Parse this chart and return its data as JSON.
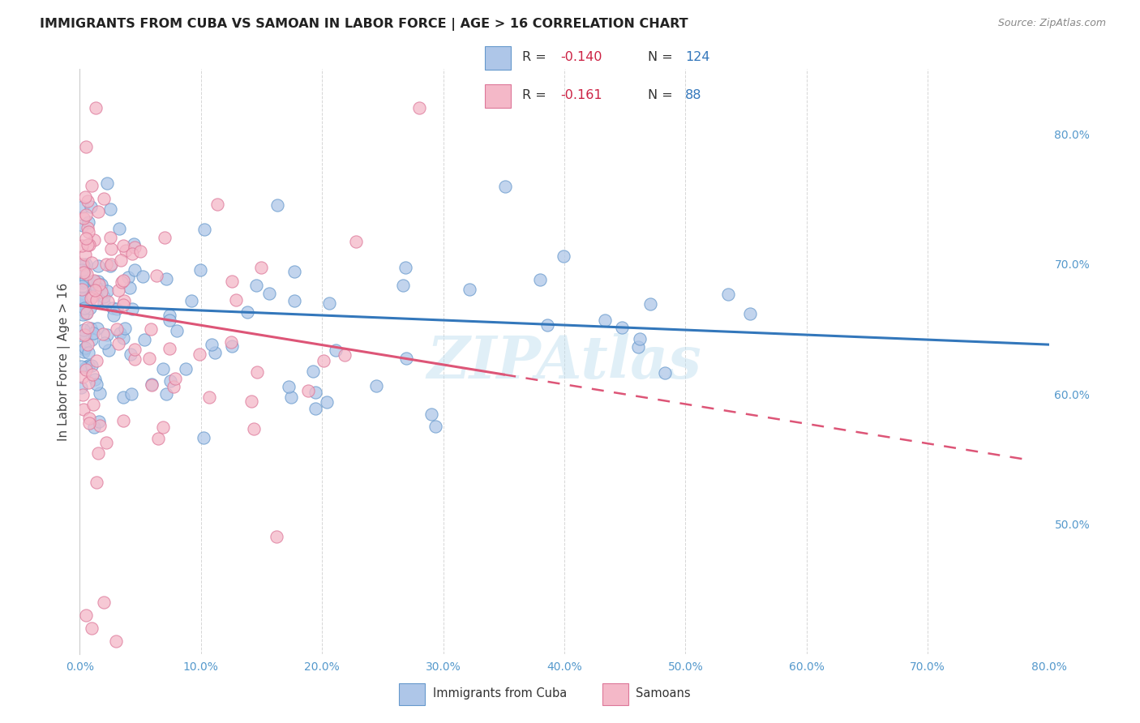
{
  "title": "IMMIGRANTS FROM CUBA VS SAMOAN IN LABOR FORCE | AGE > 16 CORRELATION CHART",
  "source": "Source: ZipAtlas.com",
  "ylabel": "In Labor Force | Age > 16",
  "xlim": [
    0.0,
    0.8
  ],
  "ylim": [
    0.4,
    0.85
  ],
  "xtick_vals": [
    0.0,
    0.1,
    0.2,
    0.3,
    0.4,
    0.5,
    0.6,
    0.7,
    0.8
  ],
  "xtick_labels": [
    "0.0%",
    "10.0%",
    "20.0%",
    "30.0%",
    "40.0%",
    "50.0%",
    "60.0%",
    "70.0%",
    "80.0%"
  ],
  "ytick_vals": [
    0.5,
    0.6,
    0.7,
    0.8
  ],
  "ytick_labels": [
    "50.0%",
    "60.0%",
    "70.0%",
    "80.0%"
  ],
  "legend_cuba_r": "-0.140",
  "legend_cuba_n": "124",
  "legend_samoan_r": "-0.161",
  "legend_samoan_n": "88",
  "cuba_color": "#aec6e8",
  "cuba_edge_color": "#6699cc",
  "samoan_color": "#f4b8c8",
  "samoan_edge_color": "#dd7799",
  "cuba_line_color": "#3377bb",
  "samoan_line_color": "#dd5577",
  "background_color": "#ffffff",
  "grid_color": "#cccccc",
  "watermark": "ZIPAtlas",
  "title_color": "#222222",
  "source_color": "#888888",
  "tick_color": "#5599cc",
  "ylabel_color": "#444444"
}
